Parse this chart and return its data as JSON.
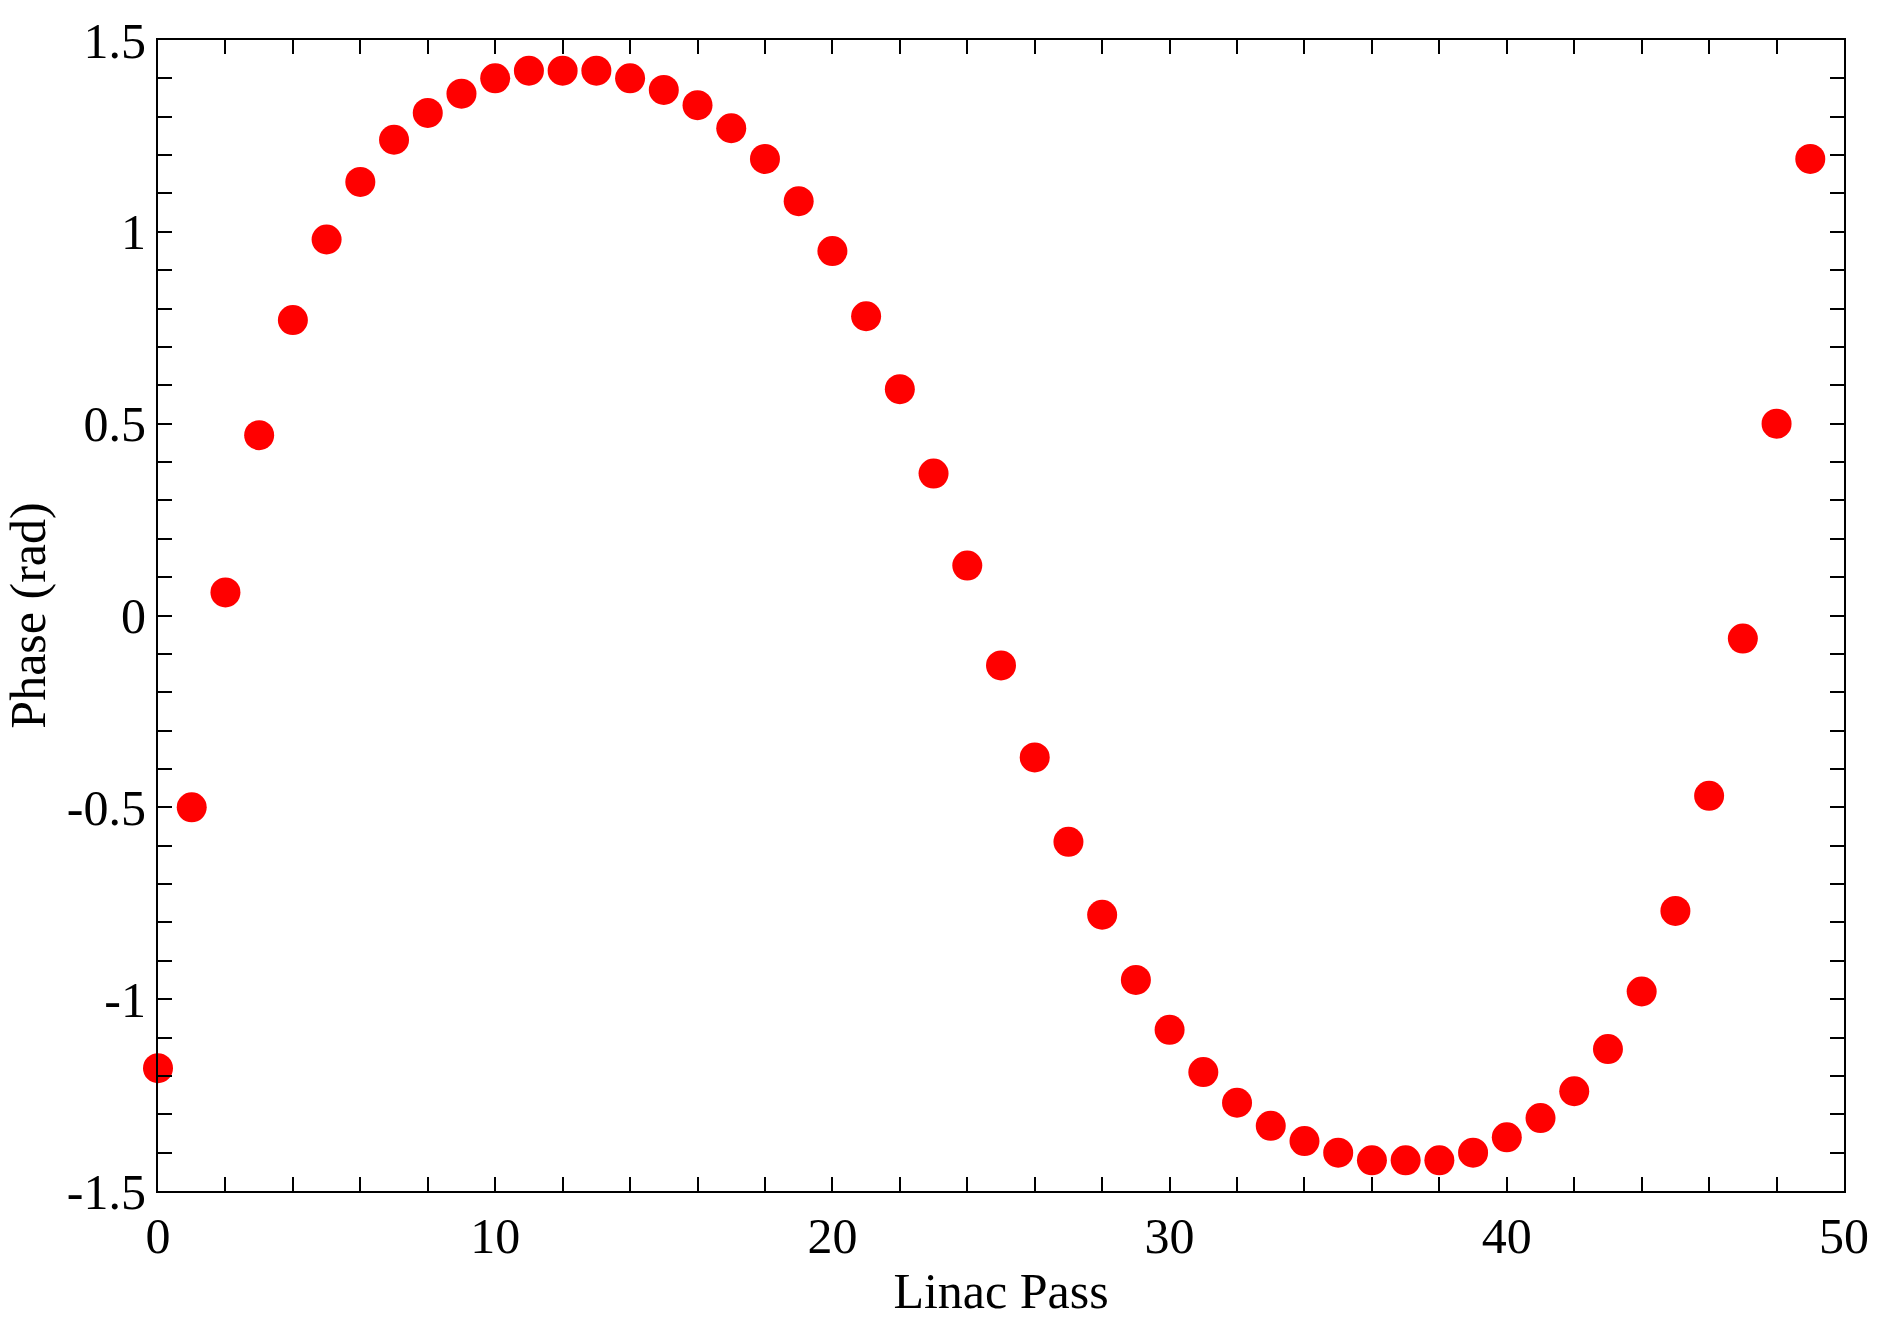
{
  "chart_data": {
    "type": "scatter",
    "xlabel": "Linac Pass",
    "ylabel": "Phase (rad)",
    "x": [
      0,
      1,
      2,
      3,
      4,
      5,
      6,
      7,
      8,
      9,
      10,
      11,
      12,
      13,
      14,
      15,
      16,
      17,
      18,
      19,
      20,
      21,
      22,
      23,
      24,
      25,
      26,
      27,
      28,
      29,
      30,
      31,
      32,
      33,
      34,
      35,
      36,
      37,
      38,
      39,
      40,
      41,
      42,
      43,
      44,
      45,
      46,
      47,
      48,
      49
    ],
    "series": [
      {
        "color": "#ff0000",
        "values": [
          -1.18,
          -0.5,
          0.06,
          0.47,
          0.77,
          0.98,
          1.13,
          1.24,
          1.31,
          1.36,
          1.4,
          1.42,
          1.42,
          1.42,
          1.4,
          1.37,
          1.33,
          1.27,
          1.19,
          1.08,
          0.95,
          0.78,
          0.59,
          0.37,
          0.13,
          -0.13,
          -0.37,
          -0.59,
          -0.78,
          -0.95,
          -1.08,
          -1.19,
          -1.27,
          -1.33,
          -1.37,
          -1.4,
          -1.42,
          -1.42,
          -1.42,
          -1.4,
          -1.36,
          -1.31,
          -1.24,
          -1.13,
          -0.98,
          -0.77,
          -0.47,
          -0.06,
          0.5,
          1.19
        ]
      }
    ],
    "marker": "circle",
    "xlim": [
      0,
      50
    ],
    "xticks": [
      0,
      {
        "value": 2,
        "label": null
      },
      {
        "value": 4,
        "label": null
      },
      {
        "value": 6,
        "label": null
      },
      {
        "value": 8,
        "label": null
      },
      10,
      {
        "value": 12,
        "label": null
      },
      {
        "value": 14,
        "label": null
      },
      {
        "value": 16,
        "label": null
      },
      {
        "value": 18,
        "label": null
      },
      20,
      {
        "value": 22,
        "label": null
      },
      {
        "value": 24,
        "label": null
      },
      {
        "value": 26,
        "label": null
      },
      {
        "value": 28,
        "label": null
      },
      30,
      {
        "value": 32,
        "label": null
      },
      {
        "value": 34,
        "label": null
      },
      {
        "value": 36,
        "label": null
      },
      {
        "value": 38,
        "label": null
      },
      40,
      {
        "value": 42,
        "label": null
      },
      {
        "value": 44,
        "label": null
      },
      {
        "value": 46,
        "label": null
      },
      {
        "value": 48,
        "label": null
      },
      50
    ],
    "ylim": [
      -1.5,
      1.5
    ],
    "yticks": [
      -1.5,
      {
        "value": -1.4,
        "label": null
      },
      {
        "value": -1.3,
        "label": null
      },
      {
        "value": -1.2,
        "label": null
      },
      {
        "value": -1.1,
        "label": null
      },
      -1,
      {
        "value": -0.9,
        "label": null
      },
      {
        "value": -0.8,
        "label": null
      },
      {
        "value": -0.7,
        "label": null
      },
      {
        "value": -0.6,
        "label": null
      },
      -0.5,
      {
        "value": -0.4,
        "label": null
      },
      {
        "value": -0.3,
        "label": null
      },
      {
        "value": -0.2,
        "label": null
      },
      {
        "value": -0.1,
        "label": null
      },
      0,
      {
        "value": 0.1,
        "label": null
      },
      {
        "value": 0.2,
        "label": null
      },
      {
        "value": 0.3,
        "label": null
      },
      {
        "value": 0.4,
        "label": null
      },
      0.5,
      {
        "value": 0.6,
        "label": null
      },
      {
        "value": 0.7,
        "label": null
      },
      {
        "value": 0.8,
        "label": null
      },
      {
        "value": 0.9,
        "label": null
      },
      1,
      {
        "value": 1.1,
        "label": null
      },
      {
        "value": 1.2,
        "label": null
      },
      {
        "value": 1.3,
        "label": null
      },
      {
        "value": 1.4,
        "label": null
      },
      1.5
    ]
  }
}
